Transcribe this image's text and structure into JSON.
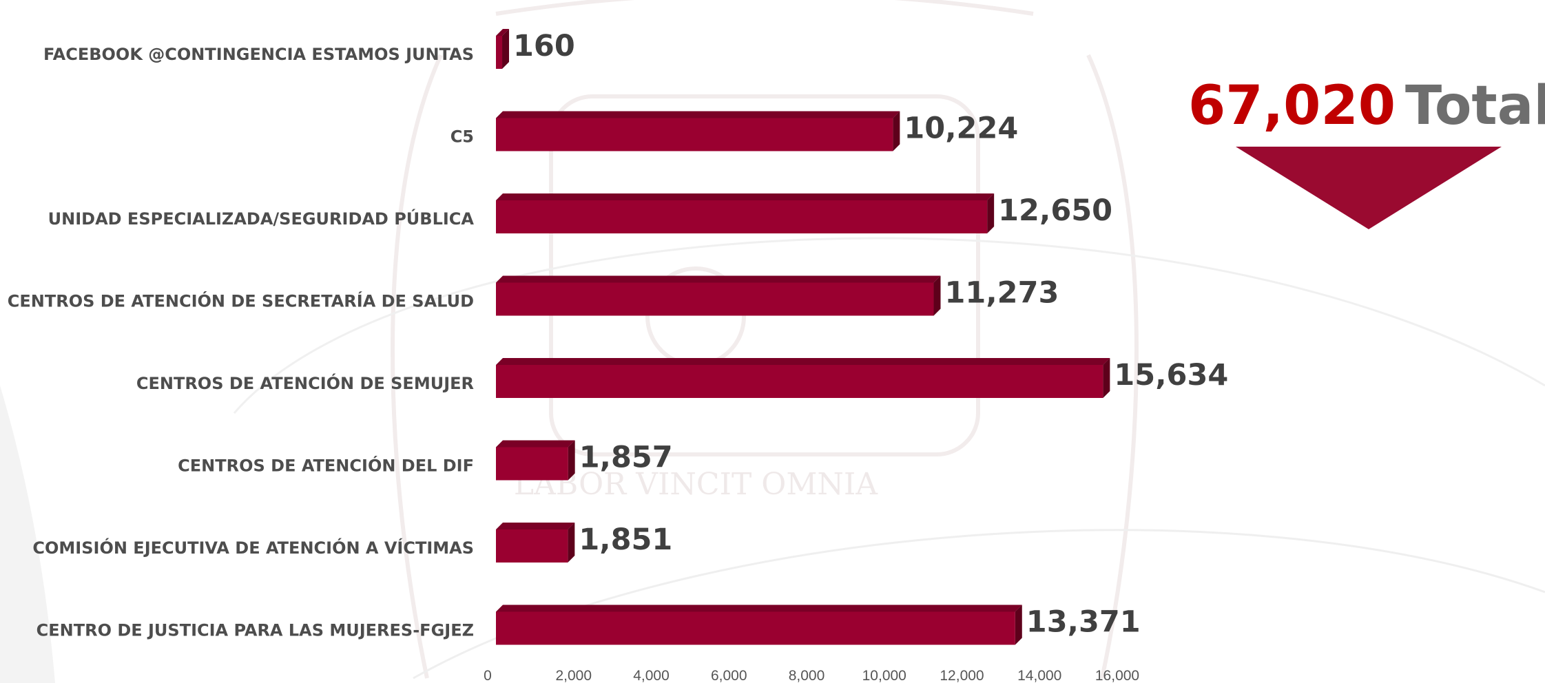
{
  "colors": {
    "bar_front": "#9a0030",
    "bar_top": "#7a0026",
    "bar_side": "#5e001b",
    "total_number": "#c00000",
    "total_label": "#6e6e6e",
    "text": "#4d4d4d",
    "corner_accent": "#c8102e"
  },
  "watermark": {
    "motto": "LABOR VINCIT OMNIA"
  },
  "summary": {
    "total_value": "67,020",
    "total_label": "Total"
  },
  "chart_data": {
    "type": "bar",
    "orientation": "horizontal",
    "style": "3d",
    "categories": [
      "FACEBOOK @CONTINGENCIA ESTAMOS JUNTAS",
      "C5",
      "UNIDAD ESPECIALIZADA/SEGURIDAD PÚBLICA",
      "CENTROS DE ATENCIÓN  DE SECRETARÍA  DE SALUD",
      "CENTROS DE ATENCIÓN DE SEMUJER",
      "CENTROS DE ATENCIÓN  DEL DIF",
      "COMISIÓN EJECUTIVA DE ATENCIÓN A VÍCTIMAS",
      "CENTRO DE JUSTICIA PARA LAS MUJERES-FGJEZ"
    ],
    "values": [
      160,
      10224,
      12650,
      11273,
      15634,
      1857,
      1851,
      13371
    ],
    "value_labels": [
      "160",
      "10,224",
      "12,650",
      "11,273",
      "15,634",
      "1,857",
      "1,851",
      "13,371"
    ],
    "xlim": [
      0,
      16000
    ],
    "x_ticks": [
      0,
      2000,
      4000,
      6000,
      8000,
      10000,
      12000,
      14000,
      16000
    ],
    "x_tick_labels": [
      "0",
      "2,000",
      "4,000",
      "6,000",
      "8,000",
      "10,000",
      "12,000",
      "14,000",
      "16,000"
    ],
    "grid": false,
    "legend": "none",
    "title": "",
    "xlabel": "",
    "ylabel": ""
  }
}
